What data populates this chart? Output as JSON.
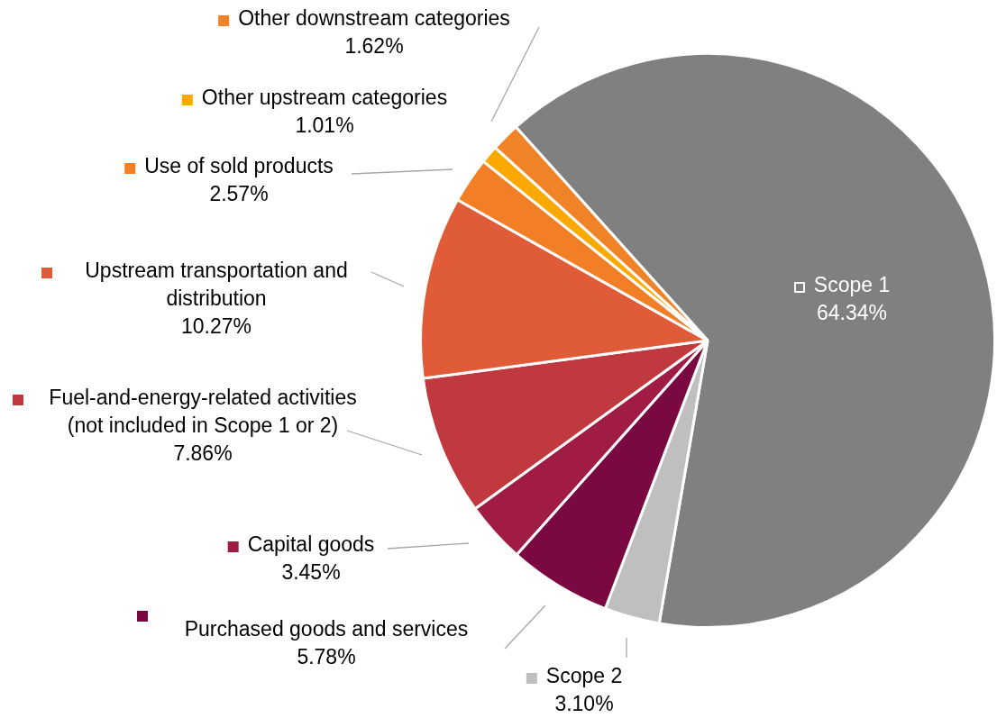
{
  "chart_data": {
    "type": "pie",
    "categories": [
      "Scope 1",
      "Scope 2",
      "Purchased goods and services",
      "Capital goods",
      "Fuel-and-energy-related activities (not included in Scope 1 or 2)",
      "Upstream transportation and distribution",
      "Use of sold products",
      "Other upstream categories",
      "Other downstream categories"
    ],
    "values": [
      64.34,
      3.1,
      5.78,
      3.45,
      7.86,
      10.27,
      2.57,
      1.01,
      1.62
    ],
    "colors": [
      "#808080",
      "#bfbfbf",
      "#7a0841",
      "#a01c45",
      "#c0393f",
      "#e05b37",
      "#f27f26",
      "#fba800",
      "#f08228"
    ],
    "value_labels": [
      "64.34%",
      "3.10%",
      "5.78%",
      "3.45%",
      "7.86%",
      "10.27%",
      "2.57%",
      "1.01%",
      "1.62%"
    ],
    "legend": "left"
  }
}
